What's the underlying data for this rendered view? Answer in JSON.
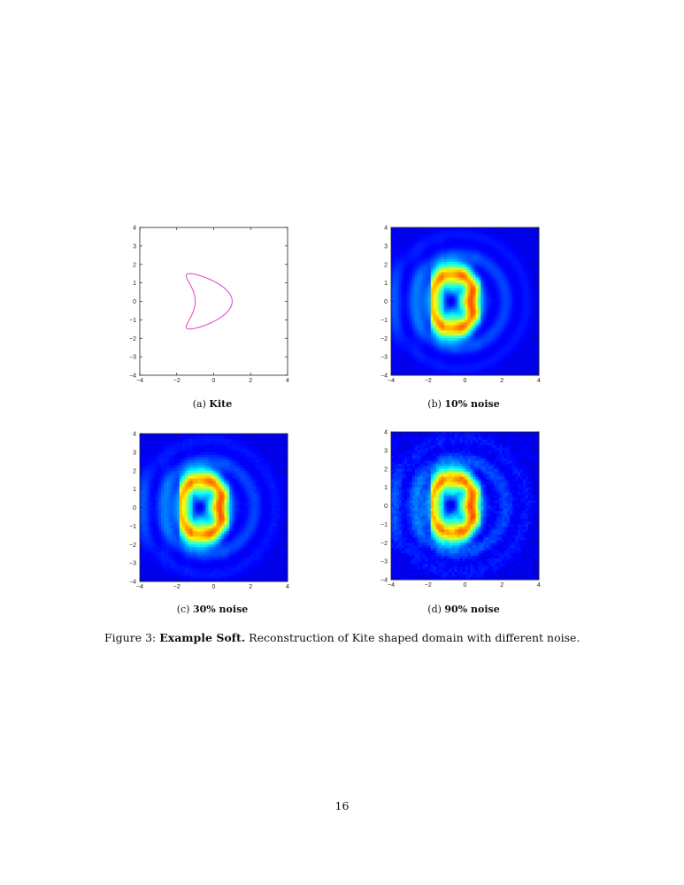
{
  "figure": {
    "caption_prefix": "Figure 3:",
    "caption_bold": "Example Soft.",
    "caption_text": "Reconstruction of Kite shaped domain with different noise."
  },
  "page_number": "16",
  "panels": [
    {
      "label": "(a)",
      "title": "Kite"
    },
    {
      "label": "(b)",
      "title": "10% noise"
    },
    {
      "label": "(c)",
      "title": "30% noise"
    },
    {
      "label": "(d)",
      "title": "90% noise"
    }
  ],
  "chart_data": [
    {
      "type": "line",
      "title": "",
      "xlabel": "",
      "ylabel": "",
      "xlim": [
        -4,
        4
      ],
      "ylim": [
        -4,
        4
      ],
      "xticks": [
        -4,
        -2,
        0,
        2,
        4
      ],
      "yticks": [
        -4,
        -3,
        -2,
        -1,
        0,
        1,
        2,
        3,
        4
      ],
      "grid": false,
      "series_color": "#e040c8",
      "curve": "kite: x = cos(t) + 0.65 cos(2t) - 0.65, y = 1.5 sin(t)"
    },
    {
      "type": "heatmap",
      "title": "",
      "xlim": [
        -4,
        4
      ],
      "ylim": [
        -4,
        4
      ],
      "xticks": [
        -4,
        -2,
        0,
        2,
        4
      ],
      "yticks": [
        -4,
        -3,
        -2,
        -1,
        0,
        1,
        2,
        3,
        4
      ],
      "colormap": "jet",
      "noise_level": 0.1
    },
    {
      "type": "heatmap",
      "title": "",
      "xlim": [
        -4,
        4
      ],
      "ylim": [
        -4,
        4
      ],
      "xticks": [
        -4,
        -2,
        0,
        2,
        4
      ],
      "yticks": [
        -4,
        -3,
        -2,
        -1,
        0,
        1,
        2,
        3,
        4
      ],
      "colormap": "jet",
      "noise_level": 0.3
    },
    {
      "type": "heatmap",
      "title": "",
      "xlim": [
        -4,
        4
      ],
      "ylim": [
        -4,
        4
      ],
      "xticks": [
        -4,
        -2,
        0,
        2,
        4
      ],
      "yticks": [
        -4,
        -3,
        -2,
        -1,
        0,
        1,
        2,
        3,
        4
      ],
      "colormap": "jet",
      "noise_level": 0.9
    }
  ]
}
